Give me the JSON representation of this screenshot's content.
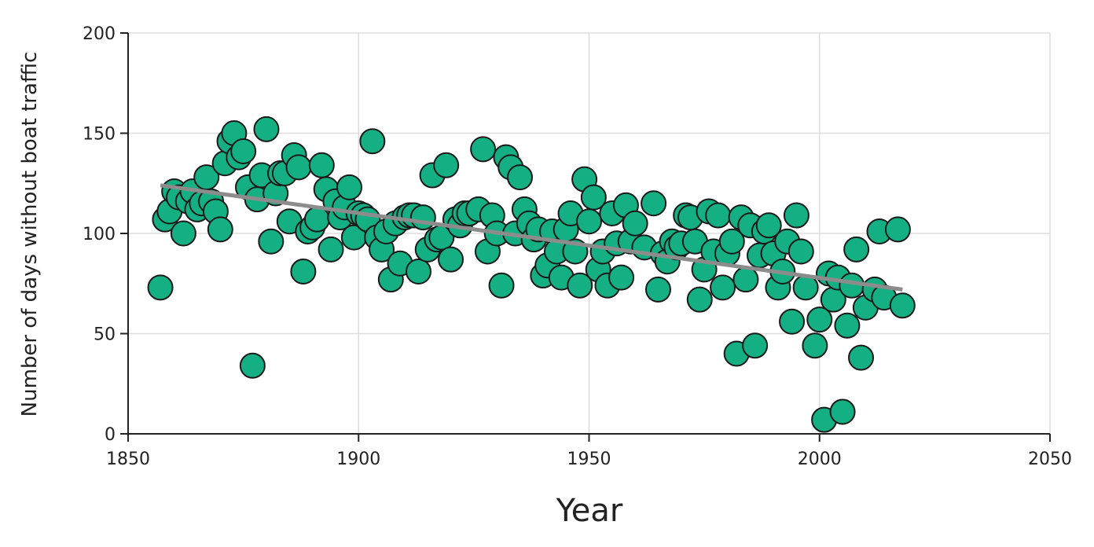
{
  "chart_data": {
    "type": "scatter",
    "title": "",
    "xlabel": "Year",
    "ylabel": "Number of days without boat traffic",
    "xlim": [
      1850,
      2050
    ],
    "ylim": [
      0,
      200
    ],
    "xticks": [
      1850,
      1900,
      1950,
      2000,
      2050
    ],
    "yticks": [
      0,
      50,
      100,
      150,
      200
    ],
    "grid": true,
    "legend": "none",
    "colors": {
      "point_fill": "#14b083",
      "point_edge": "#1a1a1a",
      "trend": "#8c8c8c"
    },
    "points": [
      [
        1857,
        73
      ],
      [
        1858,
        107
      ],
      [
        1859,
        111
      ],
      [
        1860,
        121
      ],
      [
        1861,
        118
      ],
      [
        1862,
        100
      ],
      [
        1863,
        116
      ],
      [
        1864,
        121
      ],
      [
        1865,
        112
      ],
      [
        1866,
        115
      ],
      [
        1867,
        128
      ],
      [
        1868,
        116
      ],
      [
        1869,
        111
      ],
      [
        1870,
        102
      ],
      [
        1871,
        135
      ],
      [
        1872,
        146
      ],
      [
        1873,
        150
      ],
      [
        1874,
        138
      ],
      [
        1875,
        141
      ],
      [
        1876,
        123
      ],
      [
        1877,
        34
      ],
      [
        1878,
        117
      ],
      [
        1879,
        129
      ],
      [
        1880,
        152
      ],
      [
        1881,
        96
      ],
      [
        1882,
        120
      ],
      [
        1883,
        130
      ],
      [
        1884,
        130
      ],
      [
        1885,
        106
      ],
      [
        1886,
        139
      ],
      [
        1887,
        133
      ],
      [
        1888,
        81
      ],
      [
        1889,
        101
      ],
      [
        1890,
        103
      ],
      [
        1891,
        107
      ],
      [
        1892,
        134
      ],
      [
        1893,
        122
      ],
      [
        1894,
        92
      ],
      [
        1895,
        116
      ],
      [
        1896,
        108
      ],
      [
        1897,
        113
      ],
      [
        1898,
        123
      ],
      [
        1899,
        98
      ],
      [
        1900,
        110
      ],
      [
        1901,
        109
      ],
      [
        1902,
        107
      ],
      [
        1903,
        146
      ],
      [
        1904,
        98
      ],
      [
        1905,
        92
      ],
      [
        1906,
        101
      ],
      [
        1907,
        77
      ],
      [
        1908,
        105
      ],
      [
        1909,
        85
      ],
      [
        1910,
        108
      ],
      [
        1911,
        109
      ],
      [
        1912,
        109
      ],
      [
        1913,
        81
      ],
      [
        1914,
        108
      ],
      [
        1915,
        92
      ],
      [
        1916,
        129
      ],
      [
        1917,
        97
      ],
      [
        1918,
        98
      ],
      [
        1919,
        134
      ],
      [
        1920,
        87
      ],
      [
        1921,
        107
      ],
      [
        1922,
        104
      ],
      [
        1923,
        110
      ],
      [
        1924,
        110
      ],
      [
        1926,
        112
      ],
      [
        1927,
        142
      ],
      [
        1928,
        91
      ],
      [
        1929,
        109
      ],
      [
        1930,
        100
      ],
      [
        1931,
        74
      ],
      [
        1932,
        138
      ],
      [
        1933,
        133
      ],
      [
        1934,
        100
      ],
      [
        1935,
        128
      ],
      [
        1936,
        112
      ],
      [
        1937,
        105
      ],
      [
        1938,
        97
      ],
      [
        1939,
        102
      ],
      [
        1940,
        79
      ],
      [
        1941,
        84
      ],
      [
        1942,
        101
      ],
      [
        1943,
        91
      ],
      [
        1944,
        78
      ],
      [
        1945,
        102
      ],
      [
        1946,
        110
      ],
      [
        1947,
        91
      ],
      [
        1948,
        74
      ],
      [
        1949,
        127
      ],
      [
        1950,
        106
      ],
      [
        1951,
        118
      ],
      [
        1952,
        82
      ],
      [
        1953,
        91
      ],
      [
        1954,
        74
      ],
      [
        1955,
        110
      ],
      [
        1956,
        95
      ],
      [
        1957,
        78
      ],
      [
        1958,
        114
      ],
      [
        1959,
        96
      ],
      [
        1960,
        105
      ],
      [
        1962,
        93
      ],
      [
        1964,
        115
      ],
      [
        1965,
        72
      ],
      [
        1966,
        90
      ],
      [
        1967,
        86
      ],
      [
        1968,
        96
      ],
      [
        1969,
        93
      ],
      [
        1970,
        95
      ],
      [
        1971,
        109
      ],
      [
        1972,
        108
      ],
      [
        1973,
        96
      ],
      [
        1974,
        67
      ],
      [
        1975,
        82
      ],
      [
        1976,
        111
      ],
      [
        1977,
        91
      ],
      [
        1978,
        109
      ],
      [
        1979,
        73
      ],
      [
        1980,
        90
      ],
      [
        1981,
        96
      ],
      [
        1982,
        40
      ],
      [
        1983,
        108
      ],
      [
        1984,
        77
      ],
      [
        1985,
        104
      ],
      [
        1986,
        44
      ],
      [
        1987,
        89
      ],
      [
        1988,
        101
      ],
      [
        1989,
        104
      ],
      [
        1990,
        90
      ],
      [
        1991,
        73
      ],
      [
        1992,
        81
      ],
      [
        1993,
        96
      ],
      [
        1994,
        56
      ],
      [
        1995,
        109
      ],
      [
        1996,
        91
      ],
      [
        1997,
        73
      ],
      [
        1999,
        44
      ],
      [
        2000,
        57
      ],
      [
        2001,
        7
      ],
      [
        2002,
        80
      ],
      [
        2003,
        67
      ],
      [
        2004,
        78
      ],
      [
        2005,
        11
      ],
      [
        2006,
        54
      ],
      [
        2007,
        74
      ],
      [
        2008,
        92
      ],
      [
        2009,
        38
      ],
      [
        2010,
        63
      ],
      [
        2012,
        72
      ],
      [
        2013,
        101
      ],
      [
        2014,
        68
      ],
      [
        2017,
        102
      ],
      [
        2018,
        64
      ]
    ],
    "trendline": {
      "x": [
        1857,
        2018
      ],
      "y": [
        124,
        72
      ]
    }
  }
}
